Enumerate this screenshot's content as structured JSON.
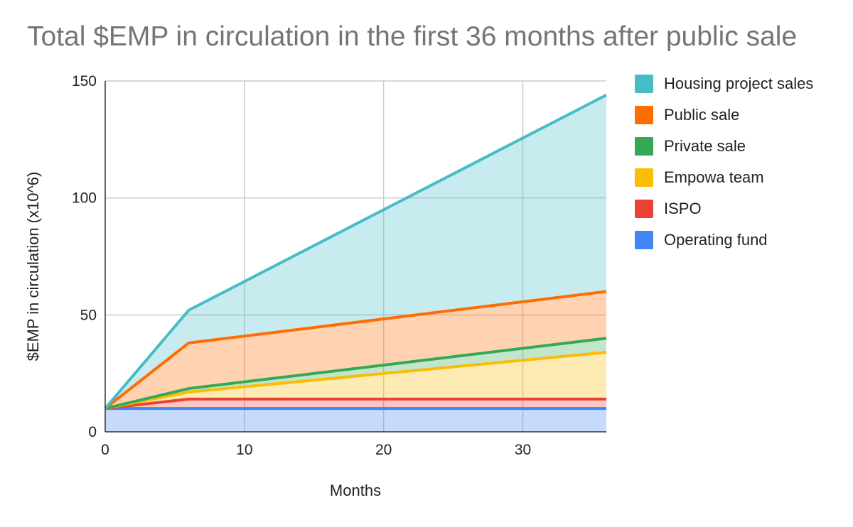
{
  "chart_data": {
    "type": "area",
    "stacked": true,
    "title": "Total $EMP in circulation in the first 36 months after public sale",
    "xlabel": "Months",
    "ylabel": "$EMP in circulation (x10^6)",
    "xlim": [
      0,
      36
    ],
    "ylim": [
      0,
      150
    ],
    "xticks": [
      0,
      10,
      20,
      30
    ],
    "yticks": [
      0,
      50,
      100,
      150
    ],
    "grid": true,
    "legend_position": "right",
    "x": [
      0,
      6,
      36
    ],
    "series": [
      {
        "name": "Operating fund",
        "color": "#4285f4",
        "values": [
          10,
          10,
          10
        ]
      },
      {
        "name": "ISPO",
        "color": "#ea4335",
        "values": [
          0,
          4,
          4
        ]
      },
      {
        "name": "Empowa team",
        "color": "#fbbc04",
        "values": [
          0,
          3,
          20
        ]
      },
      {
        "name": "Private sale",
        "color": "#34a853",
        "values": [
          0,
          1.5,
          6
        ]
      },
      {
        "name": "Public sale",
        "color": "#ff6d01",
        "values": [
          0,
          19.5,
          20
        ]
      },
      {
        "name": "Housing project sales",
        "color": "#46bdc6",
        "values": [
          0,
          14,
          84
        ]
      }
    ]
  }
}
